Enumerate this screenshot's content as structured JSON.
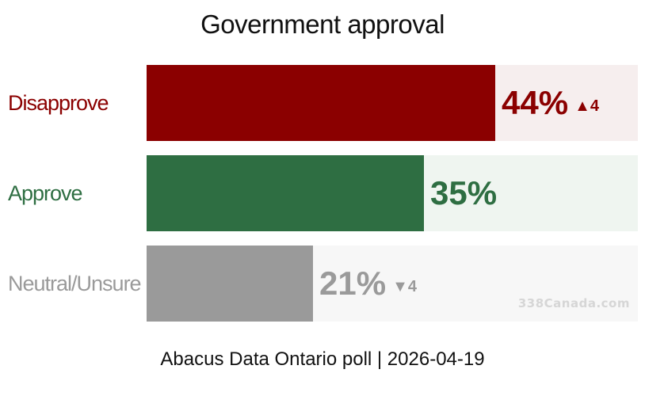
{
  "chart_data": {
    "type": "bar",
    "orientation": "horizontal",
    "title": "Government approval",
    "categories": [
      "Disapprove",
      "Approve",
      "Neutral/Unsure"
    ],
    "values": [
      44,
      35,
      21
    ],
    "value_labels": [
      "44%",
      "35%",
      "21%"
    ],
    "changes": [
      {
        "direction": "up",
        "label": "▲4"
      },
      {
        "direction": "none",
        "label": ""
      },
      {
        "direction": "down",
        "label": "▼4"
      }
    ],
    "colors": [
      "#8b0000",
      "#2e6e42",
      "#9a9a9a"
    ],
    "track_colors": [
      "#f6eeee",
      "#eff5f0",
      "#f7f7f7"
    ],
    "xlim": [
      0,
      62
    ],
    "grid": false,
    "legend": "none",
    "watermark": "338Canada.com",
    "source": "Abacus Data Ontario poll | 2026-04-19"
  }
}
